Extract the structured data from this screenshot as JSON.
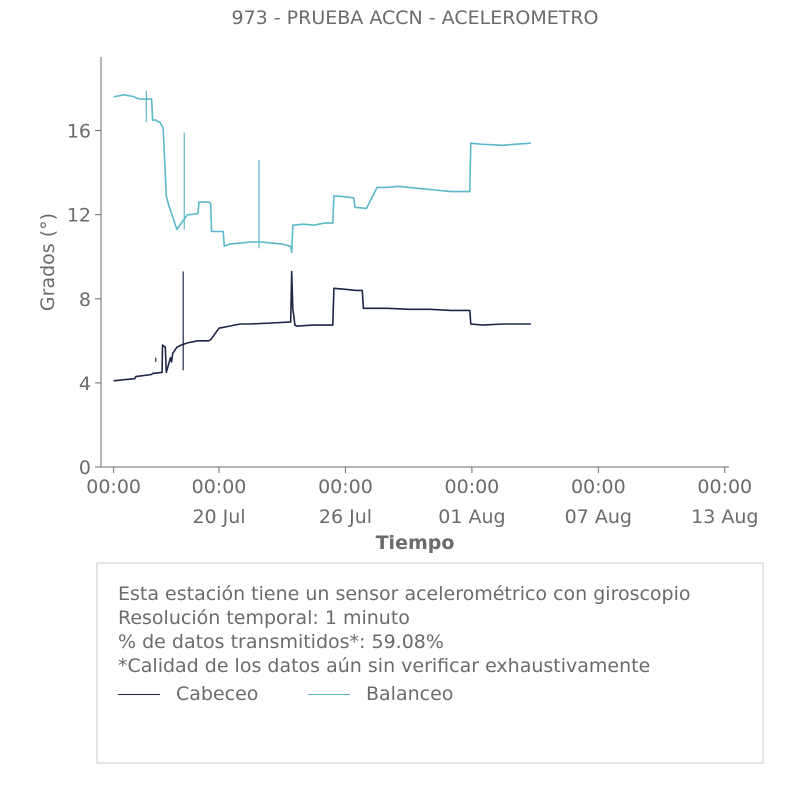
{
  "chart_data": {
    "type": "line",
    "title": "973 - PRUEBA ACCN - ACELEROMETRO",
    "xlabel": "Tiempo",
    "ylabel": "Grados (°)",
    "ylim": [
      0,
      19.5
    ],
    "xlim": [
      -0.6,
      29.2
    ],
    "yticks": [
      0,
      4,
      8,
      12,
      16
    ],
    "xticks_major": [
      {
        "x": 0,
        "label": "00:00",
        "sublabel": ""
      },
      {
        "x": 5,
        "label": "00:00",
        "sublabel": "20 Jul"
      },
      {
        "x": 11,
        "label": "00:00",
        "sublabel": "26 Jul"
      },
      {
        "x": 17,
        "label": "00:00",
        "sublabel": "01 Aug"
      },
      {
        "x": 23,
        "label": "00:00",
        "sublabel": "07 Aug"
      },
      {
        "x": 29,
        "label": "00:00",
        "sublabel": "13 Aug"
      }
    ],
    "xticks_minor": [
      5,
      11,
      17,
      23,
      29
    ],
    "grid": false,
    "series": [
      {
        "name": "Cabeceo",
        "color": "#1f2547",
        "x": [
          0,
          0.5,
          1,
          1.05,
          1.8,
          1.85,
          2.3,
          2.32,
          2.45,
          2.5,
          2.7,
          2.75,
          2.8,
          3.0,
          3.2,
          3.5,
          4.0,
          4.5,
          4.6,
          5.0,
          5.5,
          6.0,
          6.5,
          7.5,
          8.4,
          8.45,
          8.5,
          8.55,
          8.6,
          8.7,
          9.5,
          10.4,
          10.45,
          11.0,
          11.5,
          11.8,
          11.85,
          13.0,
          14.0,
          15.0,
          16.0,
          16.9,
          16.95,
          17.5,
          18.5,
          19.8
        ],
        "y": [
          4.1,
          4.15,
          4.2,
          4.3,
          4.4,
          4.45,
          4.5,
          5.8,
          5.7,
          4.5,
          5.2,
          5.0,
          5.4,
          5.7,
          5.8,
          5.9,
          6.0,
          6.0,
          6.05,
          6.6,
          6.7,
          6.8,
          6.8,
          6.85,
          6.9,
          9.3,
          7.5,
          7.2,
          6.75,
          6.7,
          6.75,
          6.75,
          8.5,
          8.45,
          8.4,
          8.4,
          7.55,
          7.55,
          7.5,
          7.5,
          7.45,
          7.45,
          6.8,
          6.75,
          6.8,
          6.8
        ]
      },
      {
        "name": "Balanceo",
        "color": "#5ab8c8",
        "x": [
          0,
          0.5,
          1,
          1.05,
          1.3,
          1.8,
          1.85,
          2.0,
          2.15,
          2.2,
          2.3,
          2.35,
          2.5,
          2.6,
          3.0,
          3.5,
          3.6,
          4.0,
          4.05,
          4.5,
          4.6,
          4.65,
          5.2,
          5.25,
          5.5,
          6.0,
          6.5,
          7.0,
          7.5,
          8.0,
          8.4,
          8.45,
          8.5,
          9.0,
          9.5,
          10.0,
          10.4,
          10.45,
          11.0,
          11.4,
          11.45,
          12.0,
          12.5,
          13.0,
          13.5,
          14.0,
          14.5,
          15.0,
          16.0,
          16.9,
          16.95,
          17.5,
          18.5,
          19.0,
          19.8
        ],
        "y": [
          17.6,
          17.7,
          17.6,
          17.55,
          17.5,
          17.5,
          16.5,
          16.5,
          16.4,
          16.4,
          16.2,
          16.1,
          12.9,
          12.5,
          11.3,
          12.0,
          12.0,
          12.05,
          12.6,
          12.6,
          12.55,
          11.2,
          11.2,
          10.5,
          10.6,
          10.65,
          10.7,
          10.7,
          10.65,
          10.6,
          10.5,
          10.2,
          11.5,
          11.55,
          11.5,
          11.6,
          11.6,
          12.9,
          12.85,
          12.8,
          12.35,
          12.3,
          13.3,
          13.3,
          13.35,
          13.3,
          13.25,
          13.2,
          13.1,
          13.1,
          15.4,
          15.35,
          15.3,
          15.35,
          15.4
        ]
      }
    ],
    "spikes": [
      {
        "series": "Balanceo",
        "x": 1.55,
        "y_from": 16.4,
        "y_to": 17.9
      },
      {
        "series": "Balanceo",
        "x": 3.35,
        "y_from": 11.3,
        "y_to": 15.9
      },
      {
        "series": "Balanceo",
        "x": 6.9,
        "y_from": 10.4,
        "y_to": 14.6
      },
      {
        "series": "Cabeceo",
        "x": 3.3,
        "y_from": 4.6,
        "y_to": 9.3
      },
      {
        "series": "Cabeceo",
        "x": 2.0,
        "y_from": 5.2,
        "y_to": 5.0
      }
    ]
  },
  "info": {
    "line1": "Esta estación tiene un sensor acelerométrico con giroscopio",
    "line2": "Resolución temporal: 1 minuto",
    "line3": "% de datos transmitidos*: 59.08%",
    "line4": "*Calidad de los datos aún sin verificar exhaustivamente"
  },
  "legend": [
    {
      "label": "Cabeceo",
      "color": "#1f2547"
    },
    {
      "label": "Balanceo",
      "color": "#5ab8c8"
    }
  ]
}
